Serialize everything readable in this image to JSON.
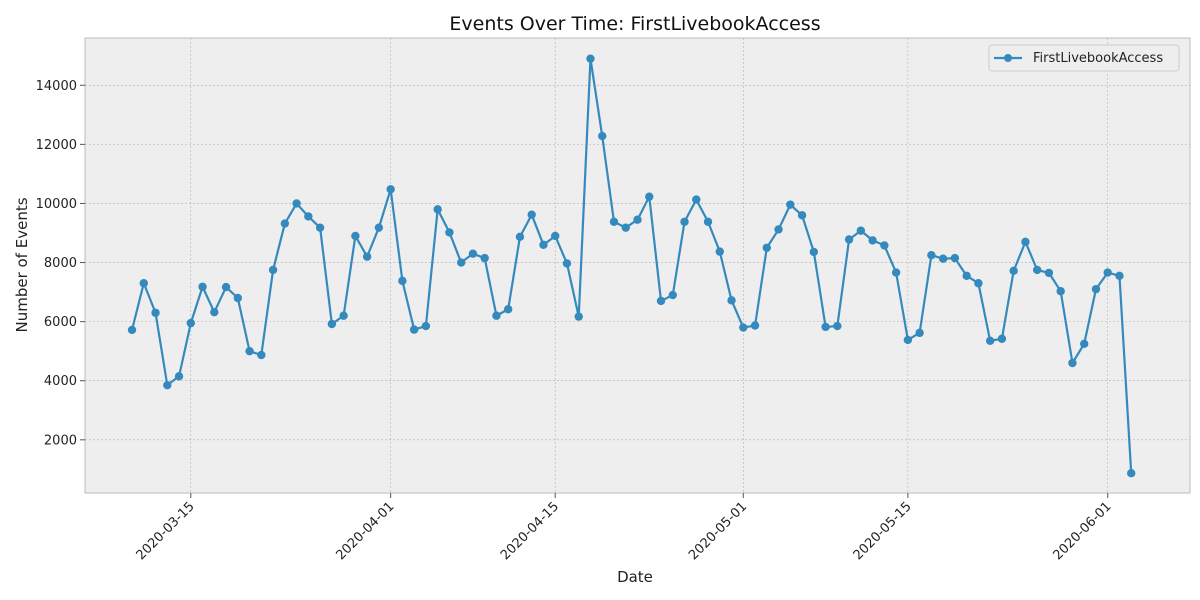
{
  "chart_data": {
    "type": "line",
    "title": "Events Over Time: FirstLivebookAccess",
    "xlabel": "Date",
    "ylabel": "Number of Events",
    "ylim": [
      200,
      15600
    ],
    "xlim": [
      "2020-03-06",
      "2020-06-08"
    ],
    "grid": true,
    "legend_position": "top-right",
    "x_ticks": [
      "2020-03-15",
      "2020-04-01",
      "2020-04-15",
      "2020-05-01",
      "2020-05-15",
      "2020-06-01"
    ],
    "y_ticks": [
      2000,
      4000,
      6000,
      8000,
      10000,
      12000,
      14000
    ],
    "colors": {
      "series": "#348abd",
      "plot_bg": "#eeeeee",
      "grid": "#b0b0b0"
    },
    "series": [
      {
        "name": "FirstLivebookAccess",
        "points": [
          [
            "2020-03-10",
            5720
          ],
          [
            "2020-03-11",
            7300
          ],
          [
            "2020-03-12",
            6300
          ],
          [
            "2020-03-13",
            3850
          ],
          [
            "2020-03-14",
            4150
          ],
          [
            "2020-03-15",
            5950
          ],
          [
            "2020-03-16",
            7180
          ],
          [
            "2020-03-17",
            6320
          ],
          [
            "2020-03-18",
            7170
          ],
          [
            "2020-03-19",
            6800
          ],
          [
            "2020-03-20",
            5000
          ],
          [
            "2020-03-21",
            4870
          ],
          [
            "2020-03-22",
            7750
          ],
          [
            "2020-03-23",
            9320
          ],
          [
            "2020-03-24",
            10000
          ],
          [
            "2020-03-25",
            9560
          ],
          [
            "2020-03-26",
            9180
          ],
          [
            "2020-03-27",
            5920
          ],
          [
            "2020-03-28",
            6200
          ],
          [
            "2020-03-29",
            8900
          ],
          [
            "2020-03-30",
            8200
          ],
          [
            "2020-03-31",
            9180
          ],
          [
            "2020-04-01",
            10480
          ],
          [
            "2020-04-02",
            7380
          ],
          [
            "2020-04-03",
            5730
          ],
          [
            "2020-04-04",
            5850
          ],
          [
            "2020-04-05",
            9800
          ],
          [
            "2020-04-06",
            9020
          ],
          [
            "2020-04-07",
            8000
          ],
          [
            "2020-04-08",
            8300
          ],
          [
            "2020-04-09",
            8150
          ],
          [
            "2020-04-10",
            6200
          ],
          [
            "2020-04-11",
            6420
          ],
          [
            "2020-04-12",
            8870
          ],
          [
            "2020-04-13",
            9620
          ],
          [
            "2020-04-14",
            8600
          ],
          [
            "2020-04-15",
            8900
          ],
          [
            "2020-04-16",
            7970
          ],
          [
            "2020-04-17",
            6170
          ],
          [
            "2020-04-18",
            14900
          ],
          [
            "2020-04-19",
            12280
          ],
          [
            "2020-04-20",
            9380
          ],
          [
            "2020-04-21",
            9180
          ],
          [
            "2020-04-22",
            9450
          ],
          [
            "2020-04-23",
            10230
          ],
          [
            "2020-04-24",
            6700
          ],
          [
            "2020-04-25",
            6900
          ],
          [
            "2020-04-26",
            9380
          ],
          [
            "2020-04-27",
            10130
          ],
          [
            "2020-04-28",
            9380
          ],
          [
            "2020-04-29",
            8370
          ],
          [
            "2020-04-30",
            6720
          ],
          [
            "2020-05-01",
            5800
          ],
          [
            "2020-05-02",
            5870
          ],
          [
            "2020-05-03",
            8500
          ],
          [
            "2020-05-04",
            9120
          ],
          [
            "2020-05-05",
            9960
          ],
          [
            "2020-05-06",
            9600
          ],
          [
            "2020-05-07",
            8360
          ],
          [
            "2020-05-08",
            5820
          ],
          [
            "2020-05-09",
            5850
          ],
          [
            "2020-05-10",
            8780
          ],
          [
            "2020-05-11",
            9080
          ],
          [
            "2020-05-12",
            8750
          ],
          [
            "2020-05-13",
            8580
          ],
          [
            "2020-05-14",
            7660
          ],
          [
            "2020-05-15",
            5380
          ],
          [
            "2020-05-16",
            5620
          ],
          [
            "2020-05-17",
            8250
          ],
          [
            "2020-05-18",
            8130
          ],
          [
            "2020-05-19",
            8150
          ],
          [
            "2020-05-20",
            7550
          ],
          [
            "2020-05-21",
            7300
          ],
          [
            "2020-05-22",
            5350
          ],
          [
            "2020-05-23",
            5420
          ],
          [
            "2020-05-24",
            7720
          ],
          [
            "2020-05-25",
            8700
          ],
          [
            "2020-05-26",
            7750
          ],
          [
            "2020-05-27",
            7650
          ],
          [
            "2020-05-28",
            7030
          ],
          [
            "2020-05-29",
            4600
          ],
          [
            "2020-05-30",
            5250
          ],
          [
            "2020-05-31",
            7100
          ],
          [
            "2020-06-01",
            7660
          ],
          [
            "2020-06-02",
            7550
          ],
          [
            "2020-06-03",
            870
          ]
        ]
      }
    ]
  }
}
